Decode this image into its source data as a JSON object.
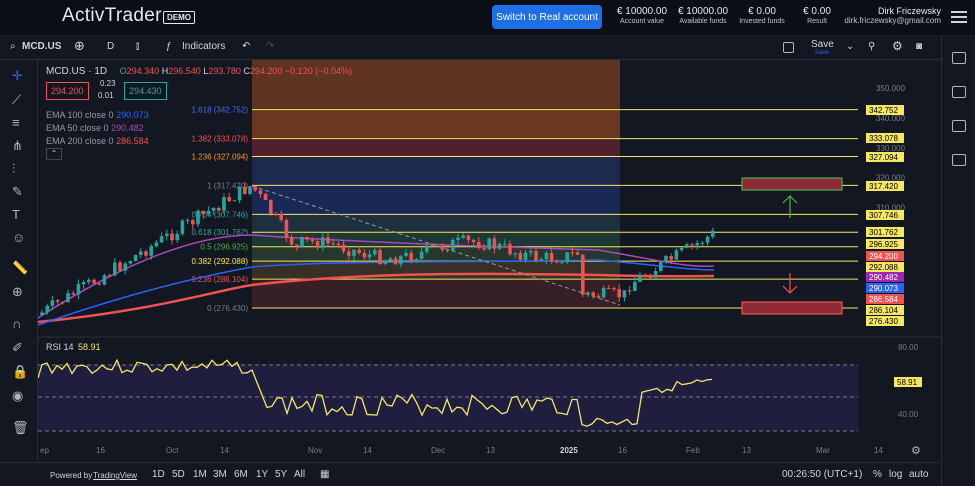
{
  "header": {
    "logo": "ActivTrader",
    "demo_badge": "DEMO",
    "real_button": "Switch to Real account",
    "stats": [
      {
        "value": "€ 10000.00",
        "label": "Account value"
      },
      {
        "value": "€ 10000.00",
        "label": "Available funds"
      },
      {
        "value": "€ 0.00",
        "label": "Invested funds"
      },
      {
        "value": "€ 0.00",
        "label": "Result"
      }
    ],
    "user_name": "Dirk Friczewsky",
    "user_email": "dirk.friczewsky@gmail.com"
  },
  "toolbar": {
    "symbol": "MCD.US",
    "interval": "D",
    "indicators": "Indicators",
    "save": "Save",
    "save_sub": "Save"
  },
  "legend": {
    "title": "MCD.US · 1D",
    "ohlc": {
      "o": "294.340",
      "h": "296.540",
      "l": "293.780",
      "c": "294.200",
      "chg": "−0.120 (−0.04%)"
    },
    "bid": "294.200",
    "ask": "294.430",
    "spread_top": "0.23",
    "spread_bottom": "0.01",
    "ema100": {
      "label": "EMA 100 close 0",
      "value": "290.073"
    },
    "ema50": {
      "label": "EMA 50 close 0",
      "value": "290.482"
    },
    "ema200": {
      "label": "EMA 200 close 0",
      "value": "286.584"
    }
  },
  "rsi": {
    "label": "RSI 14",
    "value": "58.91",
    "axis": [
      "80.00",
      "40.00"
    ]
  },
  "price_axis": [
    "350.000",
    "340.000",
    "330.000",
    "320.000",
    "310.000"
  ],
  "fib_levels": [
    {
      "ratio": "1.618",
      "price": "342.752",
      "label": "1.618 (342.752)",
      "color": "#4a6cf7"
    },
    {
      "ratio": "1.382",
      "price": "333.078",
      "label": "1.382 (333.078)",
      "color": "#ef5350"
    },
    {
      "ratio": "1.236",
      "price": "327.094",
      "label": "1.236 (327.094)",
      "color": "#ff9800"
    },
    {
      "ratio": "1",
      "price": "317.420",
      "label": "1 (317.420)",
      "color": "#787b86"
    },
    {
      "ratio": "0.764",
      "price": "307.746",
      "label": "0.764 (307.746)",
      "color": "#26a69a"
    },
    {
      "ratio": "0.618",
      "price": "301.762",
      "label": "0.618 (301.762)",
      "color": "#26a69a"
    },
    {
      "ratio": "0.5",
      "price": "296.925",
      "label": "0.5 (296.925)",
      "color": "#4caf50"
    },
    {
      "ratio": "0.382",
      "price": "292.088",
      "label": "0.382 (292.088)",
      "color": "#ffeb3b"
    },
    {
      "ratio": "0.236",
      "price": "286.104",
      "label": "0.236 (286.104)",
      "color": "#ef5350"
    },
    {
      "ratio": "0",
      "price": "276.430",
      "label": "0 (276.430)",
      "color": "#787b86"
    }
  ],
  "price_tags": [
    {
      "text": "342.752",
      "bg": "#f5e663",
      "fg": "#000"
    },
    {
      "text": "333.078",
      "bg": "#f5e663",
      "fg": "#000"
    },
    {
      "text": "327.094",
      "bg": "#f5e663",
      "fg": "#000"
    },
    {
      "text": "317.420",
      "bg": "#f5e663",
      "fg": "#000"
    },
    {
      "text": "307.746",
      "bg": "#f5e663",
      "fg": "#000"
    },
    {
      "text": "301.762",
      "bg": "#f5e663",
      "fg": "#000"
    },
    {
      "text": "296.925",
      "bg": "#f5e663",
      "fg": "#000"
    },
    {
      "text": "294.200",
      "bg": "#ef5350",
      "fg": "#fff"
    },
    {
      "text": "292.088",
      "bg": "#f5e663",
      "fg": "#000"
    },
    {
      "text": "290.482",
      "bg": "#9c27b0",
      "fg": "#fff"
    },
    {
      "text": "290.073",
      "bg": "#2962ff",
      "fg": "#fff"
    },
    {
      "text": "286.584",
      "bg": "#ef5350",
      "fg": "#fff"
    },
    {
      "text": "286.104",
      "bg": "#f5e663",
      "fg": "#000"
    },
    {
      "text": "276.430",
      "bg": "#f5e663",
      "fg": "#000"
    }
  ],
  "time_axis": [
    "ep",
    "16",
    "Oct",
    "14",
    "Nov",
    "14",
    "Dec",
    "13",
    "2025",
    "16",
    "Feb",
    "13",
    "Mar",
    "14"
  ],
  "bottom": {
    "powered": "Powered by",
    "tv": "TradingView",
    "ranges": [
      "1D",
      "5D",
      "1M",
      "3M",
      "6M",
      "1Y",
      "5Y",
      "All"
    ],
    "time": "00:26:50 (UTC+1)",
    "pct": "%",
    "log": "log",
    "auto": "auto"
  }
}
